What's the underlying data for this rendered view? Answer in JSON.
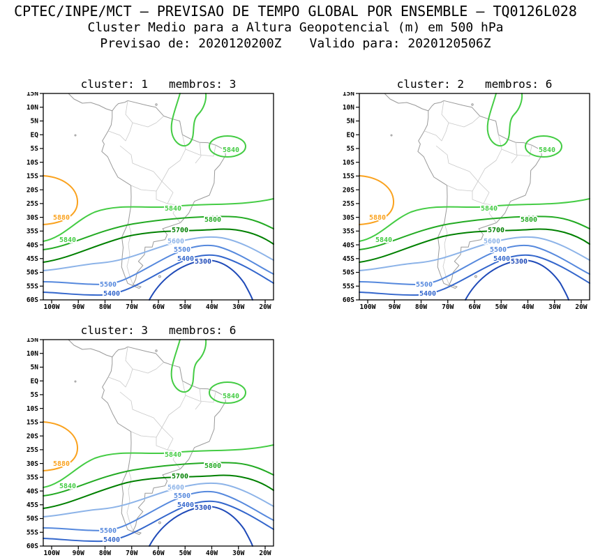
{
  "header": {
    "title": "CPTEC/INPE/MCT — PREVISAO DE TEMPO GLOBAL POR ENSEMBLE — TQ0126L028",
    "subtitle": "Cluster Medio para a Altura Geopotencial (m) em 500 hPa",
    "forecast_from": "Previsao de: 2020120200Z",
    "valid_for": "Valido para: 2020120506Z"
  },
  "panels": [
    {
      "cluster_label": "cluster: 1",
      "members_label": "membros: 3"
    },
    {
      "cluster_label": "cluster: 2",
      "members_label": "membros: 6"
    },
    {
      "cluster_label": "cluster: 3",
      "members_label": "membros: 6"
    }
  ],
  "axes": {
    "lat_labels": [
      "15N",
      "10N",
      "5N",
      "EQ",
      "5S",
      "10S",
      "15S",
      "20S",
      "25S",
      "30S",
      "35S",
      "40S",
      "45S",
      "50S",
      "55S",
      "60S"
    ],
    "lon_labels": [
      "100W",
      "90W",
      "80W",
      "70W",
      "60W",
      "50W",
      "40W",
      "30W",
      "20W"
    ]
  },
  "levels": {
    "l5880": "5880",
    "l5840": "5840",
    "l5800": "5800",
    "l5700": "5700",
    "l5600": "5600",
    "l5500": "5500",
    "l5400": "5400",
    "l5300": "5300"
  },
  "colors": {
    "c5880": "#faa21e",
    "c5840": "#44cc44",
    "c5800": "#22aa22",
    "c5700": "#008000",
    "c5600": "#8cb3e8",
    "c5500": "#5588dd",
    "c5400": "#3366cc",
    "c5300": "#1f4ab8",
    "coast": "#999999",
    "border": "#c9c9c9"
  },
  "chart_data": {
    "type": "contour",
    "title": "Cluster Medio para a Altura Geopotencial (m) em 500 hPa",
    "model": "CPTEC/INPE/MCT PREVISAO DE TEMPO GLOBAL POR ENSEMBLE TQ0126L028",
    "variable": "Altura Geopotencial",
    "units": "m",
    "pressure_level": "500 hPa",
    "init_time": "2020120200Z",
    "valid_time": "2020120506Z",
    "region": "South America",
    "panels": [
      {
        "cluster": 1,
        "members": 3
      },
      {
        "cluster": 2,
        "members": 6
      },
      {
        "cluster": 3,
        "members": 6
      }
    ],
    "x_axis": {
      "ticks": [
        "100W",
        "90W",
        "80W",
        "70W",
        "60W",
        "50W",
        "40W",
        "30W",
        "20W"
      ]
    },
    "y_axis": {
      "ticks": [
        "15N",
        "10N",
        "5N",
        "EQ",
        "5S",
        "10S",
        "15S",
        "20S",
        "25S",
        "30S",
        "35S",
        "40S",
        "45S",
        "50S",
        "55S",
        "60S"
      ]
    },
    "contour_levels_m": [
      5300,
      5400,
      5500,
      5600,
      5700,
      5800,
      5840,
      5880
    ],
    "contour_colors": {
      "5880": "#faa21e",
      "5840": "#44cc44",
      "5800": "#22aa22",
      "5700": "#008000",
      "5600": "#8cb3e8",
      "5500": "#5588dd",
      "5400": "#3366cc",
      "5300": "#1f4ab8"
    },
    "grid": false,
    "legend_position": "none"
  }
}
